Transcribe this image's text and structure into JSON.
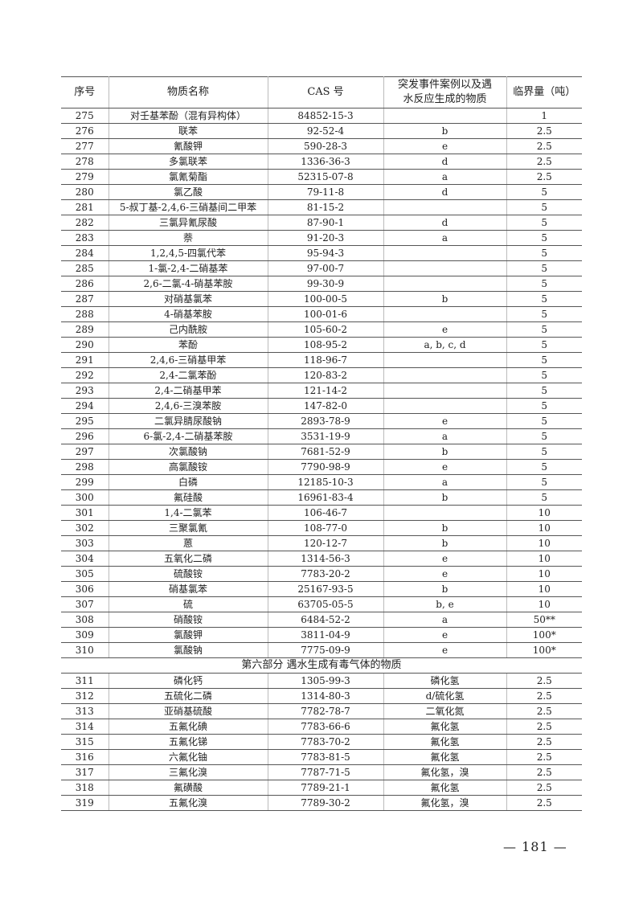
{
  "table": {
    "headers": [
      "序号",
      "物质名称",
      "CAS 号",
      "突发事件案例以及遇水反应生成的物质",
      "临界量（吨）"
    ],
    "rows": [
      [
        "275",
        "对壬基苯酚（混有异构体）",
        "84852-15-3",
        "",
        "1"
      ],
      [
        "276",
        "联苯",
        "92-52-4",
        "b",
        "2.5"
      ],
      [
        "277",
        "氰酸钾",
        "590-28-3",
        "e",
        "2.5"
      ],
      [
        "278",
        "多氯联苯",
        "1336-36-3",
        "d",
        "2.5"
      ],
      [
        "279",
        "氯氰菊酯",
        "52315-07-8",
        "a",
        "2.5"
      ],
      [
        "280",
        "氯乙酸",
        "79-11-8",
        "d",
        "5"
      ],
      [
        "281",
        "5-叔丁基-2,4,6-三硝基间二甲苯",
        "81-15-2",
        "",
        "5"
      ],
      [
        "282",
        "三氯异氰尿酸",
        "87-90-1",
        "d",
        "5"
      ],
      [
        "283",
        "萘",
        "91-20-3",
        "a",
        "5"
      ],
      [
        "284",
        "1,2,4,5-四氯代苯",
        "95-94-3",
        "",
        "5"
      ],
      [
        "285",
        "1-氯-2,4-二硝基苯",
        "97-00-7",
        "",
        "5"
      ],
      [
        "286",
        "2,6-二氯-4-硝基苯胺",
        "99-30-9",
        "",
        "5"
      ],
      [
        "287",
        "对硝基氯苯",
        "100-00-5",
        "b",
        "5"
      ],
      [
        "288",
        "4-硝基苯胺",
        "100-01-6",
        "",
        "5"
      ],
      [
        "289",
        "己内酰胺",
        "105-60-2",
        "e",
        "5"
      ],
      [
        "290",
        "苯酚",
        "108-95-2",
        "a, b, c, d",
        "5"
      ],
      [
        "291",
        "2,4,6-三硝基甲苯",
        "118-96-7",
        "",
        "5"
      ],
      [
        "292",
        "2,4-二氯苯酚",
        "120-83-2",
        "",
        "5"
      ],
      [
        "293",
        "2,4-二硝基甲苯",
        "121-14-2",
        "",
        "5"
      ],
      [
        "294",
        "2,4,6-三溴苯胺",
        "147-82-0",
        "",
        "5"
      ],
      [
        "295",
        "二氯异腈尿酸钠",
        "2893-78-9",
        "e",
        "5"
      ],
      [
        "296",
        "6-氯-2,4-二硝基苯胺",
        "3531-19-9",
        "a",
        "5"
      ],
      [
        "297",
        "次氯酸钠",
        "7681-52-9",
        "b",
        "5"
      ],
      [
        "298",
        "高氯酸铵",
        "7790-98-9",
        "e",
        "5"
      ],
      [
        "299",
        "白磷",
        "12185-10-3",
        "a",
        "5"
      ],
      [
        "300",
        "氟硅酸",
        "16961-83-4",
        "b",
        "5"
      ],
      [
        "301",
        "1,4-二氯苯",
        "106-46-7",
        "",
        "10"
      ],
      [
        "302",
        "三聚氯氰",
        "108-77-0",
        "b",
        "10"
      ],
      [
        "303",
        "蒽",
        "120-12-7",
        "b",
        "10"
      ],
      [
        "304",
        "五氧化二磷",
        "1314-56-3",
        "e",
        "10"
      ],
      [
        "305",
        "硫酸铵",
        "7783-20-2",
        "e",
        "10"
      ],
      [
        "306",
        "硝基氯苯",
        "25167-93-5",
        "b",
        "10"
      ],
      [
        "307",
        "硫",
        "63705-05-5",
        "b, e",
        "10"
      ],
      [
        "308",
        "硝酸铵",
        "6484-52-2",
        "a",
        "50**"
      ],
      [
        "309",
        "氯酸钾",
        "3811-04-9",
        "e",
        "100*"
      ],
      [
        "310",
        "氯酸钠",
        "7775-09-9",
        "e",
        "100*"
      ]
    ],
    "section_title": "第六部分 遇水生成有毒气体的物质",
    "section_rows": [
      [
        "311",
        "磷化钙",
        "1305-99-3",
        "磷化氢",
        "2.5"
      ],
      [
        "312",
        "五硫化二磷",
        "1314-80-3",
        "d/硫化氢",
        "2.5"
      ],
      [
        "313",
        "亚硝基硫酸",
        "7782-78-7",
        "二氧化氮",
        "2.5"
      ],
      [
        "314",
        "五氟化碘",
        "7783-66-6",
        "氟化氢",
        "2.5"
      ],
      [
        "315",
        "五氟化锑",
        "7783-70-2",
        "氟化氢",
        "2.5"
      ],
      [
        "316",
        "六氟化铀",
        "7783-81-5",
        "氟化氢",
        "2.5"
      ],
      [
        "317",
        "三氟化溴",
        "7787-71-5",
        "氟化氢，溴",
        "2.5"
      ],
      [
        "318",
        "氟磺酸",
        "7789-21-1",
        "氟化氢",
        "2.5"
      ],
      [
        "319",
        "五氟化溴",
        "7789-30-2",
        "氟化氢，溴",
        "2.5"
      ]
    ]
  },
  "page_number": "— 181 —"
}
